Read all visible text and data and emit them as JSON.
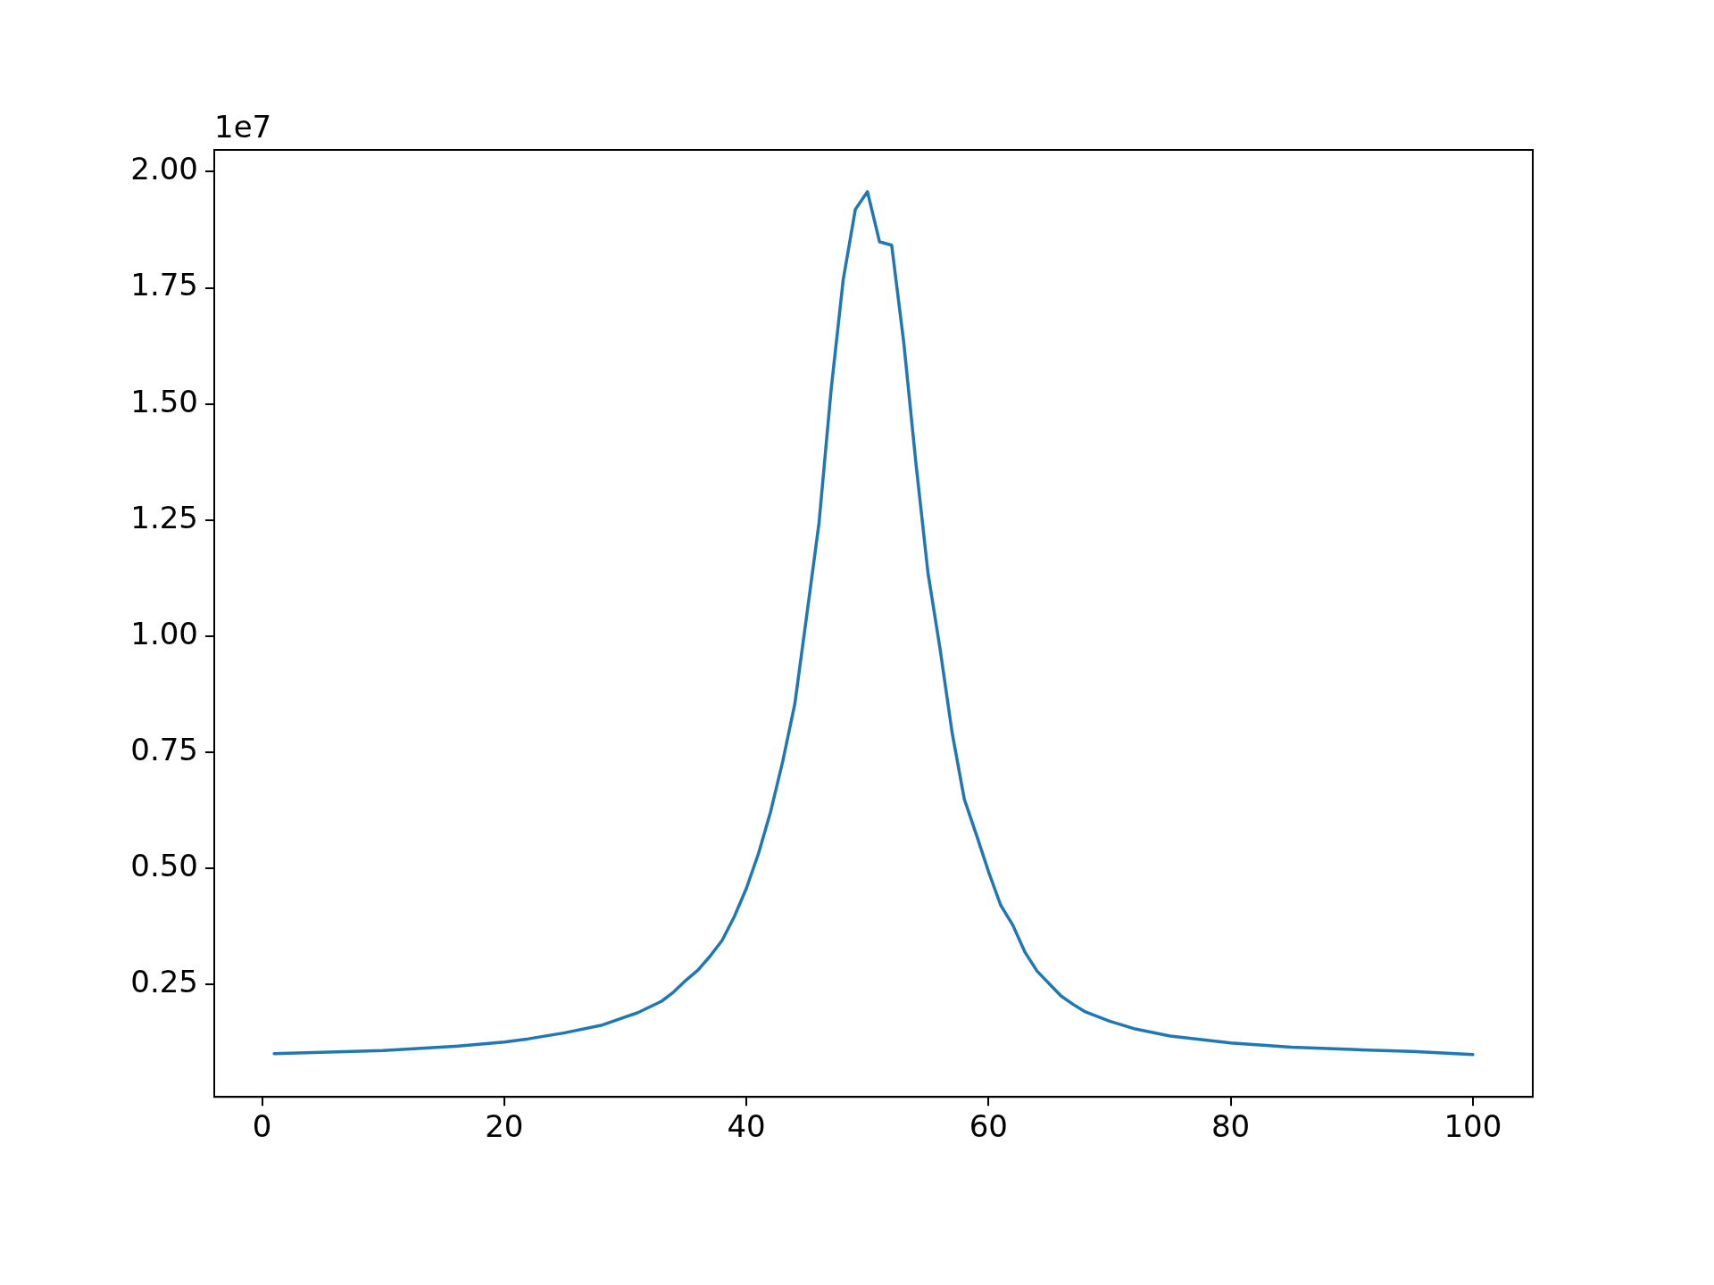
{
  "chart_data": {
    "type": "line",
    "annotations": [
      "1e7"
    ],
    "series": [
      {
        "color": "#1f77b4",
        "x": [
          1,
          10,
          16,
          20,
          22,
          25,
          28,
          30,
          31,
          33,
          34,
          35,
          36,
          37,
          38,
          39,
          40,
          41,
          42,
          43,
          44,
          45,
          46,
          47,
          48,
          49,
          50,
          51,
          52,
          53,
          54,
          55,
          56,
          57,
          58,
          59,
          60,
          61,
          62,
          63,
          64,
          65,
          66,
          67,
          68,
          70,
          72,
          75,
          80,
          85,
          90,
          95,
          100
        ],
        "values": [
          0.101,
          0.108,
          0.117,
          0.126,
          0.133,
          0.146,
          0.162,
          0.18,
          0.189,
          0.214,
          0.234,
          0.259,
          0.281,
          0.311,
          0.345,
          0.396,
          0.457,
          0.532,
          0.622,
          0.73,
          0.854,
          1.048,
          1.244,
          1.531,
          1.768,
          1.919,
          1.957,
          1.849,
          1.842,
          1.632,
          1.373,
          1.136,
          0.972,
          0.791,
          0.649,
          0.572,
          0.493,
          0.421,
          0.378,
          0.32,
          0.279,
          0.252,
          0.225,
          0.207,
          0.191,
          0.171,
          0.155,
          0.139,
          0.124,
          0.115,
          0.11,
          0.106,
          0.099
        ]
      }
    ],
    "xlim": [
      -3.95,
      104.95
    ],
    "xticks": [
      0,
      20,
      40,
      60,
      80,
      100
    ],
    "ylim": [
      0.008,
      2.047
    ],
    "yticks": [
      {
        "value": 0.25,
        "label": "0.25"
      },
      {
        "value": 0.5,
        "label": "0.50"
      },
      {
        "value": 0.75,
        "label": "0.75"
      },
      {
        "value": 1,
        "label": "1.00"
      },
      {
        "value": 1.25,
        "label": "1.25"
      },
      {
        "value": 1.5,
        "label": "1.50"
      },
      {
        "value": 1.75,
        "label": "1.75"
      },
      {
        "value": 2,
        "label": "2.00"
      }
    ],
    "marker": "none",
    "line_style": "solid"
  }
}
